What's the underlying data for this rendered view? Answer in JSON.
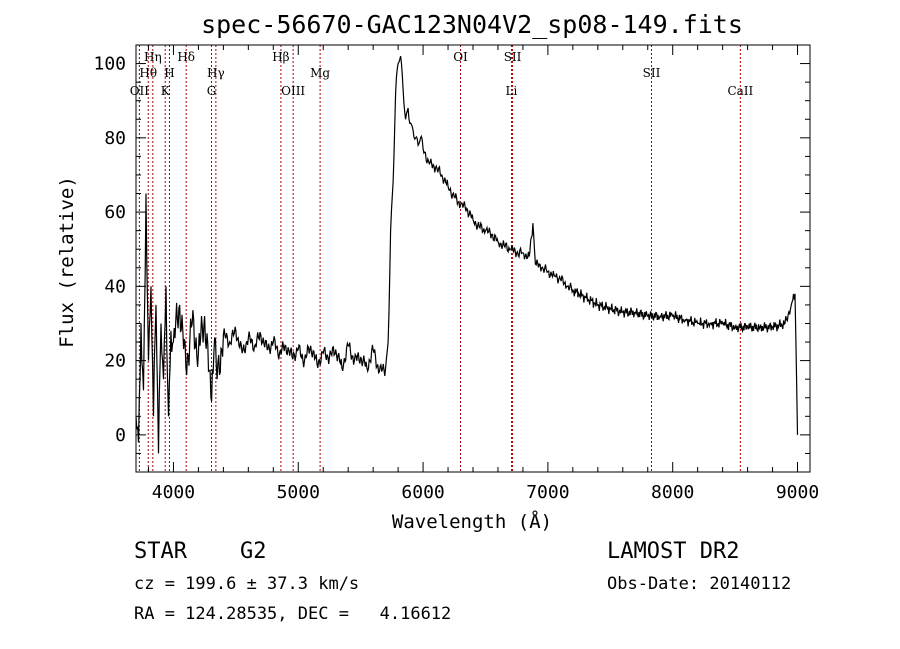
{
  "chart_data": {
    "type": "line",
    "title": "spec-56670-GAC123N04V2_sp08-149.fits",
    "xlabel": "Wavelength (Å)",
    "ylabel": "Flux (relative)",
    "xlim": [
      3700,
      9100
    ],
    "ylim": [
      -10,
      105
    ],
    "x_ticks": [
      4000,
      5000,
      6000,
      7000,
      8000,
      9000
    ],
    "y_ticks": [
      0,
      20,
      40,
      60,
      80,
      100
    ],
    "colors": {
      "spectrum": "#000000",
      "line_marker": "#aa0000"
    },
    "spectral_lines": [
      {
        "label": "Hη",
        "wavelength": 3835,
        "row": 0
      },
      {
        "label": "Hθ",
        "wavelength": 3798,
        "row": 1
      },
      {
        "label": "H",
        "wavelength": 3968,
        "row": 1
      },
      {
        "label": "OII",
        "wavelength": 3727,
        "row": 2
      },
      {
        "label": "K",
        "wavelength": 3934,
        "row": 2
      },
      {
        "label": "Hδ",
        "wavelength": 4102,
        "row": 0
      },
      {
        "label": "Hγ",
        "wavelength": 4340,
        "row": 1
      },
      {
        "label": "G",
        "wavelength": 4305,
        "row": 2
      },
      {
        "label": "Hβ",
        "wavelength": 4861,
        "row": 0
      },
      {
        "label": "OIII",
        "wavelength": 4959,
        "row": 2
      },
      {
        "label": "Mg",
        "wavelength": 5175,
        "row": 1
      },
      {
        "label": "OI",
        "wavelength": 6300,
        "row": 0
      },
      {
        "label": "SII",
        "wavelength": 6717,
        "row": 0
      },
      {
        "label": "Li",
        "wavelength": 6708,
        "row": 2
      },
      {
        "label": "SII",
        "wavelength": 7830,
        "row": 1
      },
      {
        "label": "CaII",
        "wavelength": 8542,
        "row": 2
      }
    ],
    "series": [
      {
        "name": "flux",
        "x": [
          3700,
          3720,
          3740,
          3760,
          3780,
          3800,
          3820,
          3840,
          3860,
          3880,
          3900,
          3920,
          3940,
          3960,
          3980,
          4000,
          4050,
          4100,
          4150,
          4200,
          4250,
          4300,
          4330,
          4350,
          4400,
          4450,
          4500,
          4550,
          4600,
          4650,
          4700,
          4750,
          4800,
          4850,
          4900,
          4950,
          5000,
          5050,
          5100,
          5150,
          5200,
          5250,
          5300,
          5350,
          5400,
          5450,
          5500,
          5550,
          5600,
          5650,
          5700,
          5720,
          5740,
          5760,
          5780,
          5800,
          5820,
          5840,
          5860,
          5880,
          5900,
          5920,
          5940,
          5960,
          5980,
          6000,
          6050,
          6100,
          6150,
          6200,
          6250,
          6300,
          6350,
          6400,
          6450,
          6500,
          6550,
          6600,
          6650,
          6700,
          6750,
          6800,
          6850,
          6880,
          6900,
          6950,
          7000,
          7050,
          7100,
          7150,
          7200,
          7300,
          7400,
          7500,
          7600,
          7700,
          7800,
          7900,
          8000,
          8100,
          8200,
          8300,
          8400,
          8500,
          8600,
          8700,
          8800,
          8900,
          8950,
          8980,
          9000
        ],
        "y": [
          5,
          -2,
          30,
          12,
          65,
          20,
          40,
          5,
          35,
          -5,
          30,
          15,
          40,
          5,
          28,
          25,
          35,
          18,
          30,
          22,
          32,
          10,
          26,
          15,
          27,
          25,
          28,
          22,
          26,
          24,
          27,
          23,
          25,
          22,
          24,
          21,
          23,
          20,
          24,
          19,
          22,
          21,
          23,
          18,
          24,
          20,
          21,
          18,
          23,
          17,
          18,
          25,
          55,
          68,
          92,
          100,
          102,
          93,
          85,
          88,
          84,
          82,
          80,
          78,
          80,
          77,
          73,
          72,
          70,
          67,
          64,
          62,
          61,
          58,
          56,
          55,
          54,
          52,
          51,
          50,
          49,
          49,
          48,
          57,
          46,
          45,
          44,
          43,
          42,
          40,
          39,
          37,
          35,
          34,
          33,
          33,
          32,
          32,
          32,
          31,
          30,
          30,
          30,
          29,
          29,
          29,
          29,
          30,
          35,
          38,
          0
        ]
      }
    ]
  },
  "info": {
    "object_class": "STAR",
    "subclass": "G2",
    "survey": "LAMOST DR2",
    "redshift": "cz = 199.6 ± 37.3 km/s",
    "obs_date": "Obs-Date: 20140112",
    "coords": "RA = 124.28535, DEC =   4.16612"
  }
}
